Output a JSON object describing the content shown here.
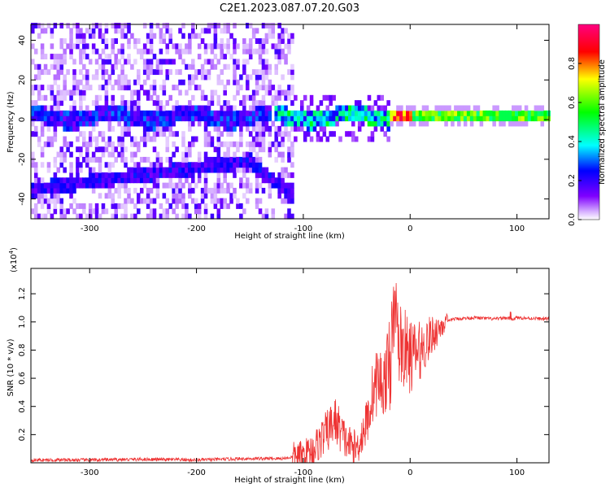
{
  "title": "C2E1.2023.087.07.20.G03",
  "chart_data": [
    {
      "type": "heatmap",
      "xlabel": "Height of straight line (km)",
      "ylabel": "Frequency (Hz)",
      "xlim": [
        -355,
        130
      ],
      "ylim": [
        -50,
        48
      ],
      "xticks": [
        -300,
        -200,
        -100,
        0,
        100
      ],
      "yticks": [
        -40,
        -20,
        0,
        20,
        40
      ],
      "xtick_labels": [
        "-300",
        "-200",
        "-100",
        "0",
        "100"
      ],
      "ytick_labels": [
        "-40",
        "-20",
        "0",
        "20",
        "40"
      ],
      "grid": false,
      "colorbar": {
        "label": "Normalized spectral amplitude",
        "range": [
          0,
          1
        ],
        "ticks": [
          0.0,
          0.2,
          0.4,
          0.6,
          0.8
        ],
        "tick_labels": [
          "0.0",
          "0.2",
          "0.4",
          "0.6",
          "0.8"
        ],
        "colors": [
          "#ffffff",
          "#7f00ff",
          "#0000ff",
          "#00ffff",
          "#00ff00",
          "#ffff00",
          "#ff0000",
          "#ff0080"
        ]
      },
      "features": [
        {
          "label": "carrier",
          "x": [
            -130,
            130
          ],
          "y": [
            0,
            0
          ]
        },
        {
          "label": "lower branch",
          "x": [
            -350,
            -110
          ],
          "y": [
            -36,
            -40
          ]
        }
      ]
    },
    {
      "type": "line",
      "xlabel": "Height of straight line (km)",
      "ylabel": "SNR (10 * v/v)",
      "y_multiplier": "(x10",
      "y_multiplier_exp": "4",
      "y_multiplier_close": ")",
      "xlim": [
        -355,
        130
      ],
      "ylim": [
        0,
        1.38
      ],
      "xticks": [
        -300,
        -200,
        -100,
        0,
        100
      ],
      "yticks": [
        0.2,
        0.4,
        0.6,
        0.8,
        1.0,
        1.2
      ],
      "xtick_labels": [
        "-300",
        "-200",
        "-100",
        "0",
        "100"
      ],
      "ytick_labels": [
        "0.2",
        "0.4",
        "0.6",
        "0.8",
        "1.0",
        "1.2"
      ],
      "grid": false,
      "color": "#ee3333",
      "series": [
        {
          "x": [
            -355,
            -300,
            -250,
            -200,
            -150,
            -120,
            -100,
            -90,
            -80,
            -70,
            -60,
            -50,
            -40,
            -35,
            -30,
            -25,
            -20,
            -15,
            -10,
            -5,
            0,
            10,
            20,
            30,
            40,
            60,
            80,
            90,
            95,
            100,
            130
          ],
          "y": [
            0.02,
            0.02,
            0.025,
            0.02,
            0.03,
            0.03,
            0.05,
            0.1,
            0.2,
            0.3,
            0.15,
            0.1,
            0.3,
            0.5,
            0.6,
            0.55,
            0.7,
            0.9,
            0.85,
            0.8,
            0.75,
            0.8,
            0.9,
            0.98,
            1.02,
            1.03,
            1.02,
            1.03,
            1.02,
            1.03,
            1.02
          ]
        }
      ]
    }
  ]
}
